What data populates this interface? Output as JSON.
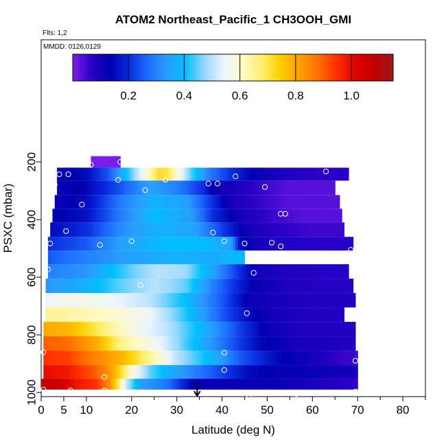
{
  "chart_data": {
    "type": "heatmap",
    "title": "ATOM2 Northeast_Pacific_1 CH3OOH_GMI",
    "flights_label": "Flts: 1,2",
    "dates_label": "MMDD: 0126,0129",
    "xlabel": "Latitude (deg N)",
    "ylabel": "PSXC (mbar)",
    "xlim": [
      0,
      85
    ],
    "ylim": [
      1000,
      100
    ],
    "x_tick_labels": [
      "0",
      "5",
      "10",
      "20",
      "30",
      "40",
      "50",
      "60",
      "70",
      "80"
    ],
    "y_tick_labels": [
      "200",
      "400",
      "600",
      "800",
      "1000"
    ],
    "colorbar": {
      "range": [
        0,
        1.15
      ],
      "tick_labels": [
        "0.2",
        "0.4",
        "0.6",
        "0.8",
        "1.0"
      ],
      "colors": [
        "#7b1fe8",
        "#2a00c8",
        "#0000b0",
        "#0a2ee0",
        "#1e6cff",
        "#2a9cff",
        "#00c0ff",
        "#9ad8ff",
        "#eaf4ff",
        "#fff9c8",
        "#fff070",
        "#ffd000",
        "#ffa000",
        "#ff7000",
        "#ff3000",
        "#e00000",
        "#c00000",
        "#a01818"
      ]
    },
    "layers": [
      {
        "p": 200,
        "x0": 11,
        "x1": 17.5,
        "profile": [
          [
            11,
            0.0
          ],
          [
            17.5,
            0.0
          ]
        ]
      },
      {
        "p": 240,
        "x0": 3.5,
        "x1": 68,
        "profile": [
          [
            3.5,
            0.12
          ],
          [
            10,
            0.15
          ],
          [
            15,
            0.25
          ],
          [
            20,
            0.45
          ],
          [
            24,
            0.62
          ],
          [
            26,
            0.72
          ],
          [
            28,
            0.7
          ],
          [
            30,
            0.6
          ],
          [
            33,
            0.45
          ],
          [
            37,
            0.3
          ],
          [
            42,
            0.2
          ],
          [
            48,
            0.12
          ],
          [
            55,
            0.08
          ],
          [
            62,
            0.07
          ],
          [
            68,
            0.07
          ]
        ]
      },
      {
        "p": 290,
        "x0": 3.5,
        "x1": 65,
        "profile": [
          [
            3.5,
            0.12
          ],
          [
            10,
            0.14
          ],
          [
            18,
            0.25
          ],
          [
            24,
            0.35
          ],
          [
            30,
            0.3
          ],
          [
            36,
            0.2
          ],
          [
            38,
            0.12
          ],
          [
            42,
            0.1
          ],
          [
            48,
            0.06
          ],
          [
            55,
            0.03
          ],
          [
            65,
            0.03
          ]
        ]
      },
      {
        "p": 340,
        "x0": 3,
        "x1": 66,
        "profile": [
          [
            3,
            0.12
          ],
          [
            10,
            0.15
          ],
          [
            18,
            0.3
          ],
          [
            25,
            0.38
          ],
          [
            32,
            0.35
          ],
          [
            38,
            0.2
          ],
          [
            42,
            0.1
          ],
          [
            48,
            0.06
          ],
          [
            55,
            0.03
          ],
          [
            66,
            0.03
          ]
        ]
      },
      {
        "p": 385,
        "x0": 2.5,
        "x1": 66.5,
        "profile": [
          [
            2.5,
            0.13
          ],
          [
            10,
            0.16
          ],
          [
            18,
            0.3
          ],
          [
            25,
            0.4
          ],
          [
            33,
            0.35
          ],
          [
            38,
            0.2
          ],
          [
            44,
            0.1
          ],
          [
            50,
            0.06
          ],
          [
            58,
            0.03
          ],
          [
            66.5,
            0.03
          ]
        ]
      },
      {
        "p": 435,
        "x0": 2,
        "x1": 67,
        "profile": [
          [
            2,
            0.15
          ],
          [
            10,
            0.2
          ],
          [
            18,
            0.32
          ],
          [
            26,
            0.38
          ],
          [
            34,
            0.35
          ],
          [
            40,
            0.22
          ],
          [
            46,
            0.1
          ],
          [
            52,
            0.07
          ],
          [
            60,
            0.05
          ],
          [
            67,
            0.05
          ]
        ]
      },
      {
        "p": 485,
        "x0": 1.5,
        "x1": 69,
        "profile": [
          [
            1.5,
            0.2
          ],
          [
            10,
            0.25
          ],
          [
            18,
            0.35
          ],
          [
            28,
            0.4
          ],
          [
            36,
            0.4
          ],
          [
            42,
            0.35
          ],
          [
            44,
            0.15
          ],
          [
            48,
            0.1
          ],
          [
            55,
            0.08
          ],
          [
            62,
            0.07
          ],
          [
            69,
            0.07
          ]
        ]
      },
      {
        "p": 530,
        "x0": 1.5,
        "x1": 45,
        "profile": [
          [
            1.5,
            0.25
          ],
          [
            10,
            0.3
          ],
          [
            20,
            0.35
          ],
          [
            30,
            0.38
          ],
          [
            38,
            0.36
          ],
          [
            45,
            0.4
          ]
        ]
      },
      {
        "p": 580,
        "x0": 1.5,
        "x1": 68,
        "profile": [
          [
            1.5,
            0.3
          ],
          [
            10,
            0.33
          ],
          [
            20,
            0.45
          ],
          [
            26,
            0.5
          ],
          [
            32,
            0.48
          ],
          [
            38,
            0.35
          ],
          [
            44,
            0.2
          ],
          [
            48,
            0.1
          ],
          [
            56,
            0.08
          ],
          [
            68,
            0.07
          ]
        ]
      },
      {
        "p": 630,
        "x0": 1,
        "x1": 69,
        "profile": [
          [
            1,
            0.33
          ],
          [
            10,
            0.38
          ],
          [
            18,
            0.45
          ],
          [
            25,
            0.5
          ],
          [
            32,
            0.45
          ],
          [
            38,
            0.3
          ],
          [
            44,
            0.18
          ],
          [
            48,
            0.12
          ],
          [
            56,
            0.08
          ],
          [
            69,
            0.07
          ]
        ]
      },
      {
        "p": 680,
        "x0": 1,
        "x1": 69.5,
        "profile": [
          [
            1,
            0.55
          ],
          [
            8,
            0.57
          ],
          [
            16,
            0.55
          ],
          [
            24,
            0.5
          ],
          [
            32,
            0.4
          ],
          [
            40,
            0.25
          ],
          [
            46,
            0.12
          ],
          [
            52,
            0.1
          ],
          [
            60,
            0.08
          ],
          [
            69.5,
            0.08
          ]
        ]
      },
      {
        "p": 730,
        "x0": 1,
        "x1": 67,
        "profile": [
          [
            1,
            0.65
          ],
          [
            8,
            0.63
          ],
          [
            16,
            0.6
          ],
          [
            24,
            0.55
          ],
          [
            32,
            0.42
          ],
          [
            40,
            0.25
          ],
          [
            46,
            0.15
          ],
          [
            52,
            0.1
          ],
          [
            60,
            0.08
          ],
          [
            67,
            0.08
          ]
        ]
      },
      {
        "p": 780,
        "x0": 0.5,
        "x1": 69.5,
        "profile": [
          [
            0.5,
            0.8
          ],
          [
            6,
            0.78
          ],
          [
            12,
            0.7
          ],
          [
            20,
            0.58
          ],
          [
            28,
            0.5
          ],
          [
            36,
            0.38
          ],
          [
            44,
            0.22
          ],
          [
            50,
            0.12
          ],
          [
            58,
            0.08
          ],
          [
            69.5,
            0.08
          ]
        ]
      },
      {
        "p": 830,
        "x0": 0.5,
        "x1": 69.5,
        "profile": [
          [
            0.5,
            0.9
          ],
          [
            6,
            0.88
          ],
          [
            12,
            0.8
          ],
          [
            18,
            0.65
          ],
          [
            26,
            0.55
          ],
          [
            34,
            0.4
          ],
          [
            42,
            0.25
          ],
          [
            48,
            0.15
          ],
          [
            56,
            0.1
          ],
          [
            69.5,
            0.08
          ]
        ]
      },
      {
        "p": 880,
        "x0": 0.5,
        "x1": 70,
        "profile": [
          [
            0.5,
            0.95
          ],
          [
            6,
            0.93
          ],
          [
            12,
            0.85
          ],
          [
            18,
            0.78
          ],
          [
            24,
            0.65
          ],
          [
            30,
            0.5
          ],
          [
            38,
            0.38
          ],
          [
            44,
            0.25
          ],
          [
            52,
            0.15
          ],
          [
            60,
            0.1
          ],
          [
            66,
            0.06
          ],
          [
            70,
            0.05
          ]
        ]
      },
      {
        "p": 930,
        "x0": 0.5,
        "x1": 70,
        "profile": [
          [
            0.5,
            1.0
          ],
          [
            6,
            0.98
          ],
          [
            12,
            0.9
          ],
          [
            16,
            0.8
          ],
          [
            20,
            0.6
          ],
          [
            24,
            0.45
          ],
          [
            30,
            0.35
          ],
          [
            38,
            0.25
          ],
          [
            46,
            0.15
          ],
          [
            54,
            0.12
          ],
          [
            60,
            0.12
          ],
          [
            70,
            0.1
          ]
        ]
      },
      {
        "p": 975,
        "x0": 0,
        "x1": 70,
        "profile": [
          [
            0,
            1.1
          ],
          [
            4,
            1.05
          ],
          [
            8,
            0.98
          ],
          [
            12,
            0.95
          ],
          [
            15,
            0.85
          ],
          [
            17,
            0.7
          ],
          [
            19,
            0.5
          ],
          [
            22,
            0.35
          ],
          [
            28,
            0.28
          ],
          [
            34,
            0.12
          ],
          [
            40,
            0.12
          ],
          [
            46,
            0.12
          ],
          [
            52,
            0.12
          ],
          [
            58,
            0.1
          ],
          [
            64,
            0.08
          ],
          [
            70,
            0.06
          ]
        ]
      }
    ],
    "points": [
      {
        "lat": 11,
        "p": 210
      },
      {
        "lat": 17.5,
        "p": 200
      },
      {
        "lat": 4,
        "p": 243
      },
      {
        "lat": 6,
        "p": 243
      },
      {
        "lat": 17,
        "p": 262
      },
      {
        "lat": 27.5,
        "p": 262
      },
      {
        "lat": 43,
        "p": 250
      },
      {
        "lat": 63,
        "p": 233
      },
      {
        "lat": 3,
        "p": 278
      },
      {
        "lat": 23,
        "p": 298
      },
      {
        "lat": 37,
        "p": 275
      },
      {
        "lat": 39,
        "p": 275
      },
      {
        "lat": 49.5,
        "p": 287
      },
      {
        "lat": 9,
        "p": 348
      },
      {
        "lat": 53,
        "p": 380
      },
      {
        "lat": 54,
        "p": 380
      },
      {
        "lat": 5.5,
        "p": 440
      },
      {
        "lat": 38,
        "p": 445
      },
      {
        "lat": 2,
        "p": 483
      },
      {
        "lat": 13,
        "p": 488
      },
      {
        "lat": 20,
        "p": 475
      },
      {
        "lat": 40.5,
        "p": 475
      },
      {
        "lat": 45,
        "p": 483
      },
      {
        "lat": 51,
        "p": 480
      },
      {
        "lat": 53,
        "p": 493
      },
      {
        "lat": 68.5,
        "p": 505
      },
      {
        "lat": 1.5,
        "p": 573
      },
      {
        "lat": 47,
        "p": 585
      },
      {
        "lat": 22,
        "p": 628
      },
      {
        "lat": 45.5,
        "p": 725
      },
      {
        "lat": 0.5,
        "p": 860
      },
      {
        "lat": 40.5,
        "p": 862
      },
      {
        "lat": 69.5,
        "p": 890
      },
      {
        "lat": 40.5,
        "p": 922
      },
      {
        "lat": 14,
        "p": 947
      },
      {
        "lat": 0.5,
        "p": 990
      },
      {
        "lat": 6.5,
        "p": 993
      },
      {
        "lat": 14,
        "p": 993
      },
      {
        "lat": 21,
        "p": 1000
      },
      {
        "lat": 46,
        "p": 1012
      },
      {
        "lat": 56.5,
        "p": 1005
      },
      {
        "lat": 69.5,
        "p": 997
      }
    ],
    "arrow_marker": {
      "lat": 34.5
    }
  }
}
